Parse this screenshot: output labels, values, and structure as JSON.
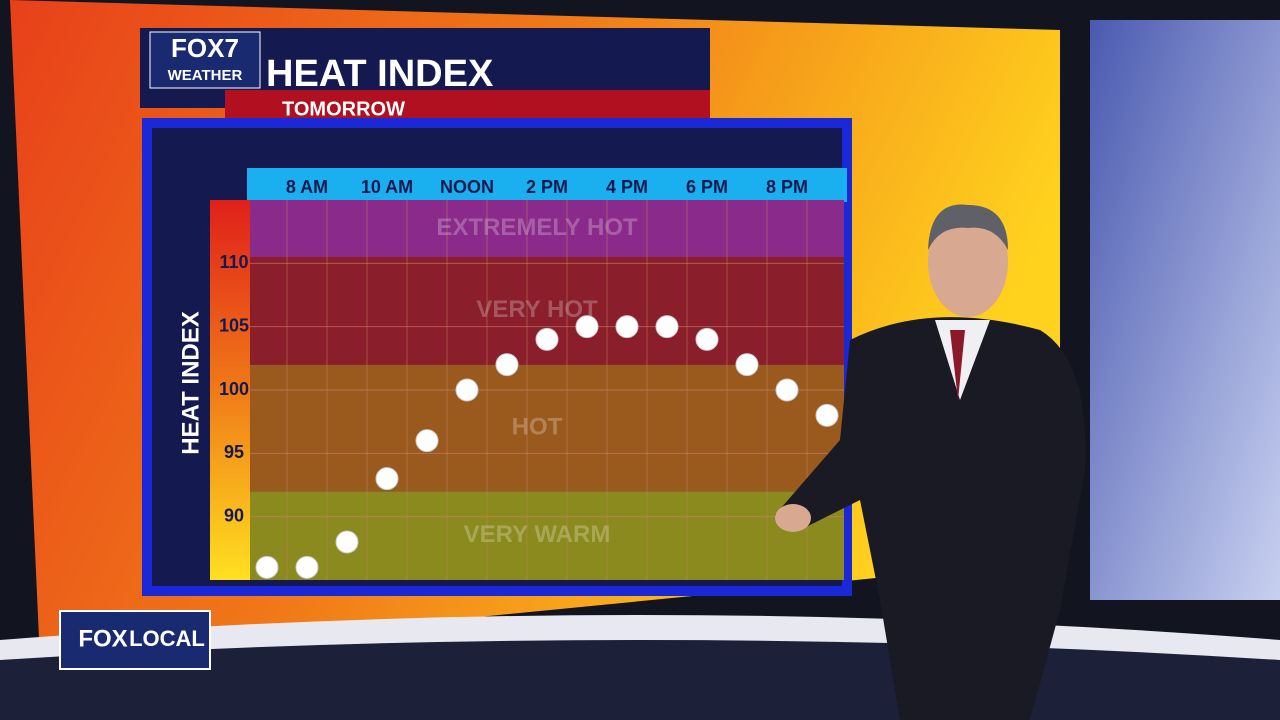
{
  "branding": {
    "station": "FOX7",
    "station_sub": "WEATHER",
    "bug_left": "FOX",
    "bug_right": "LOCAL"
  },
  "chart_data": {
    "type": "scatter",
    "title": "HEAT INDEX",
    "subtitle": "TOMORROW",
    "y_label": "HEAT INDEX",
    "categories": [
      null,
      "8 AM",
      null,
      "10 AM",
      null,
      "NOON",
      null,
      "2 PM",
      null,
      "4 PM",
      null,
      "6 PM",
      null,
      "8 PM",
      null
    ],
    "values": [
      86,
      86,
      88,
      93,
      96,
      100,
      102,
      104,
      105,
      105,
      105,
      104,
      102,
      100,
      98
    ],
    "color": "#ffffff",
    "ylim": [
      85,
      115
    ],
    "yticks": [
      90,
      95,
      100,
      105,
      110
    ],
    "grid": true,
    "zones": [
      {
        "label": "VERY WARM",
        "from": 85,
        "to": 92,
        "color": "#8a8a1e"
      },
      {
        "label": "HOT",
        "from": 92,
        "to": 102,
        "color": "#9a5a1e"
      },
      {
        "label": "VERY HOT",
        "from": 102,
        "to": 110.5,
        "color": "#8a1e2a"
      },
      {
        "label": "EXTREMELY HOT",
        "from": 110.5,
        "to": 115,
        "color": "#8a2a8a"
      }
    ]
  }
}
